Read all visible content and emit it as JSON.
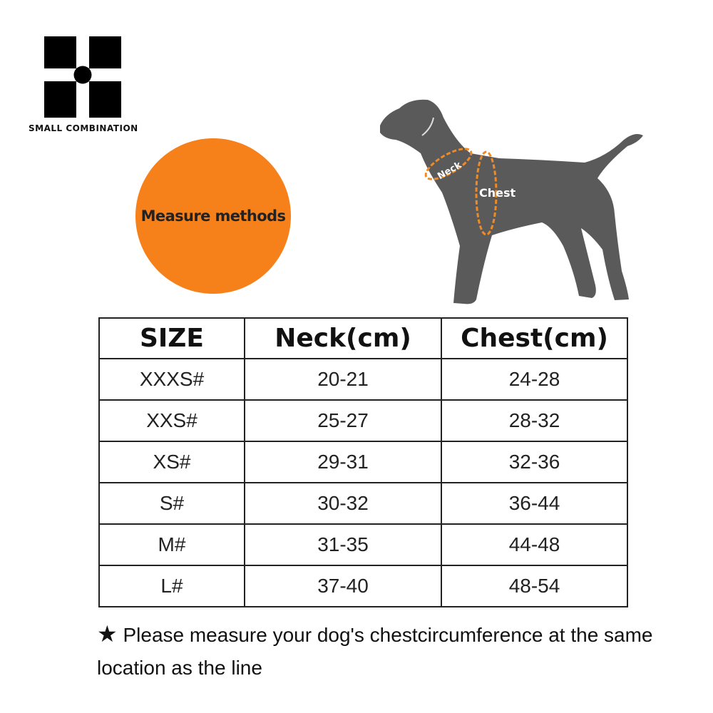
{
  "brand": {
    "name": "SMALL COMBINATION"
  },
  "badge": {
    "label": "Measure methods",
    "color": "#f6801a"
  },
  "diagram": {
    "neck_label": "Neck",
    "chest_label": "Chest",
    "dog_color": "#5a5a5a",
    "line_color": "#f08a24"
  },
  "table": {
    "headers": [
      "SIZE",
      "Neck(cm)",
      "Chest(cm)"
    ],
    "rows": [
      [
        "XXXS#",
        "20-21",
        "24-28"
      ],
      [
        "XXS#",
        "25-27",
        "28-32"
      ],
      [
        "XS#",
        "29-31",
        "32-36"
      ],
      [
        "S#",
        "30-32",
        "36-44"
      ],
      [
        "M#",
        "31-35",
        "44-48"
      ],
      [
        "L#",
        "37-40",
        "48-54"
      ]
    ]
  },
  "note": {
    "icon": "star-icon",
    "text": "Please measure your dog's chestcircumference at the same location as the line"
  }
}
